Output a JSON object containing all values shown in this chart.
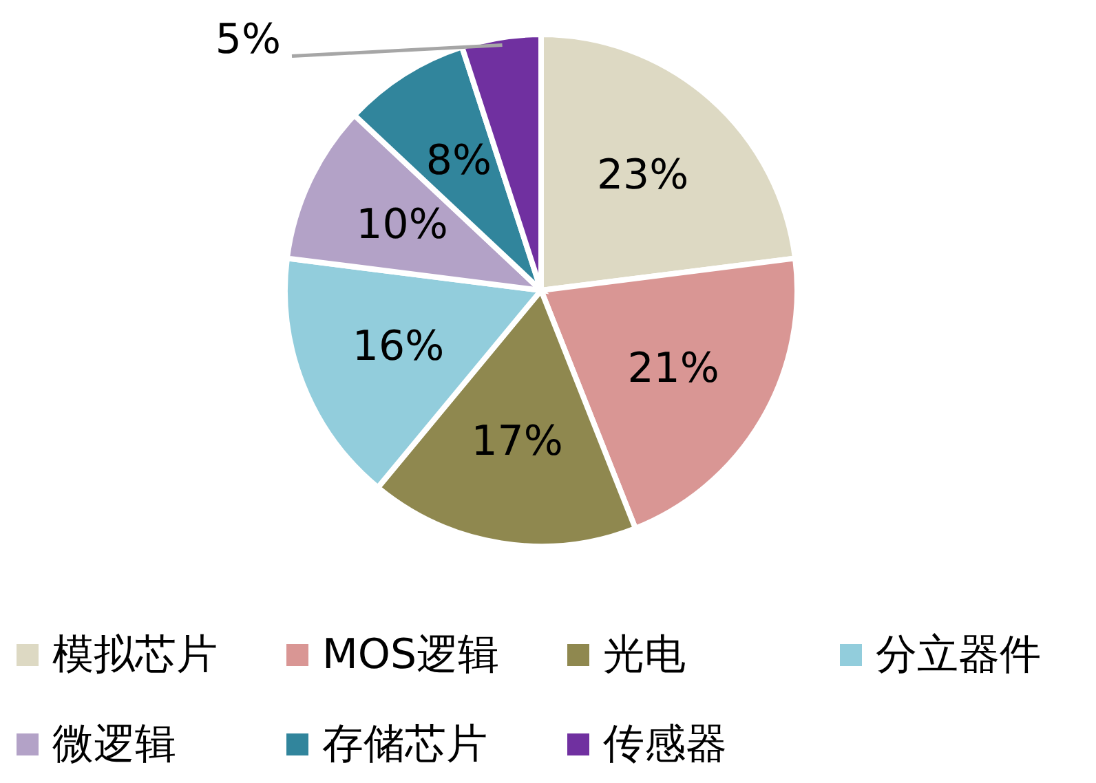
{
  "chart_data": {
    "type": "pie",
    "categories": [
      "模拟芯片",
      "MOS逻辑",
      "光电",
      "分立器件",
      "微逻辑",
      "存储芯片",
      "传感器"
    ],
    "values": [
      23,
      21,
      17,
      16,
      10,
      8,
      5
    ],
    "colors": [
      "#ddd9c3",
      "#d99694",
      "#8f884f",
      "#92cddc",
      "#b3a2c7",
      "#31859c",
      "#7030a0"
    ],
    "value_labels": [
      "23%",
      "21%",
      "17%",
      "16%",
      "10%",
      "8%",
      "5%"
    ],
    "legend": "bottom"
  }
}
